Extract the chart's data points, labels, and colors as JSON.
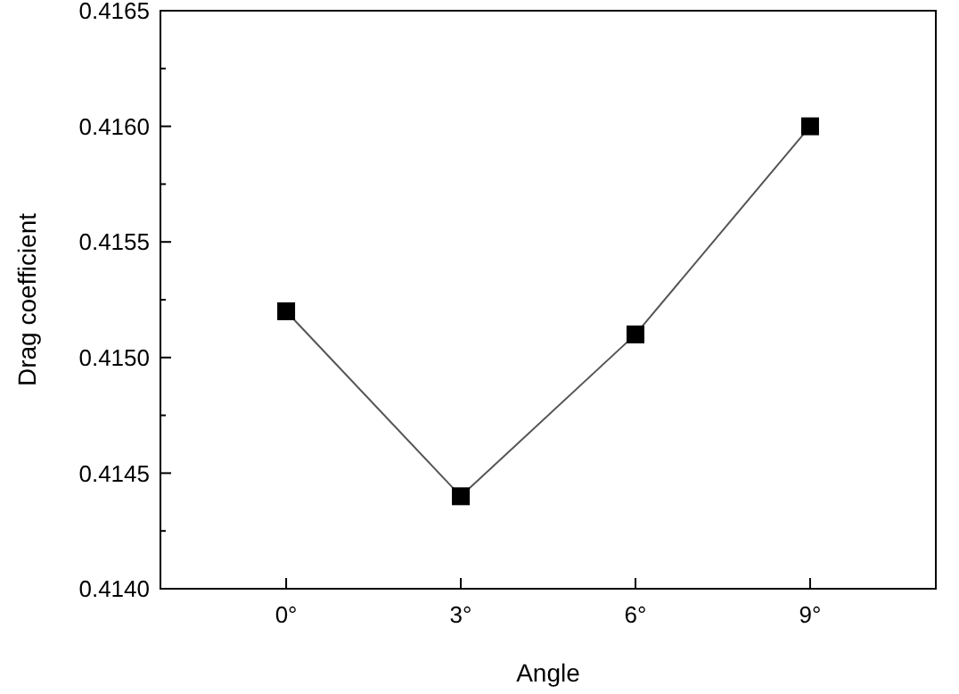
{
  "chart_data": {
    "type": "line",
    "xlabel": "Angle",
    "ylabel": "Drag coefficient",
    "categories": [
      "0°",
      "3°",
      "6°",
      "9°"
    ],
    "series": [
      {
        "color": "#000000",
        "values": [
          0.4152,
          0.4144,
          0.4151,
          0.416
        ]
      }
    ],
    "ylim": [
      0.414,
      0.4165
    ],
    "yticks": [
      {
        "value": 0.414,
        "label": "0.4140"
      },
      {
        "value": 0.4145,
        "label": "0.4145"
      },
      {
        "value": 0.415,
        "label": "0.4150"
      },
      {
        "value": 0.4155,
        "label": "0.4155"
      },
      {
        "value": 0.416,
        "label": "0.4160"
      },
      {
        "value": 0.4165,
        "label": "0.4165"
      }
    ],
    "marker": "square",
    "line_style": "solid"
  }
}
